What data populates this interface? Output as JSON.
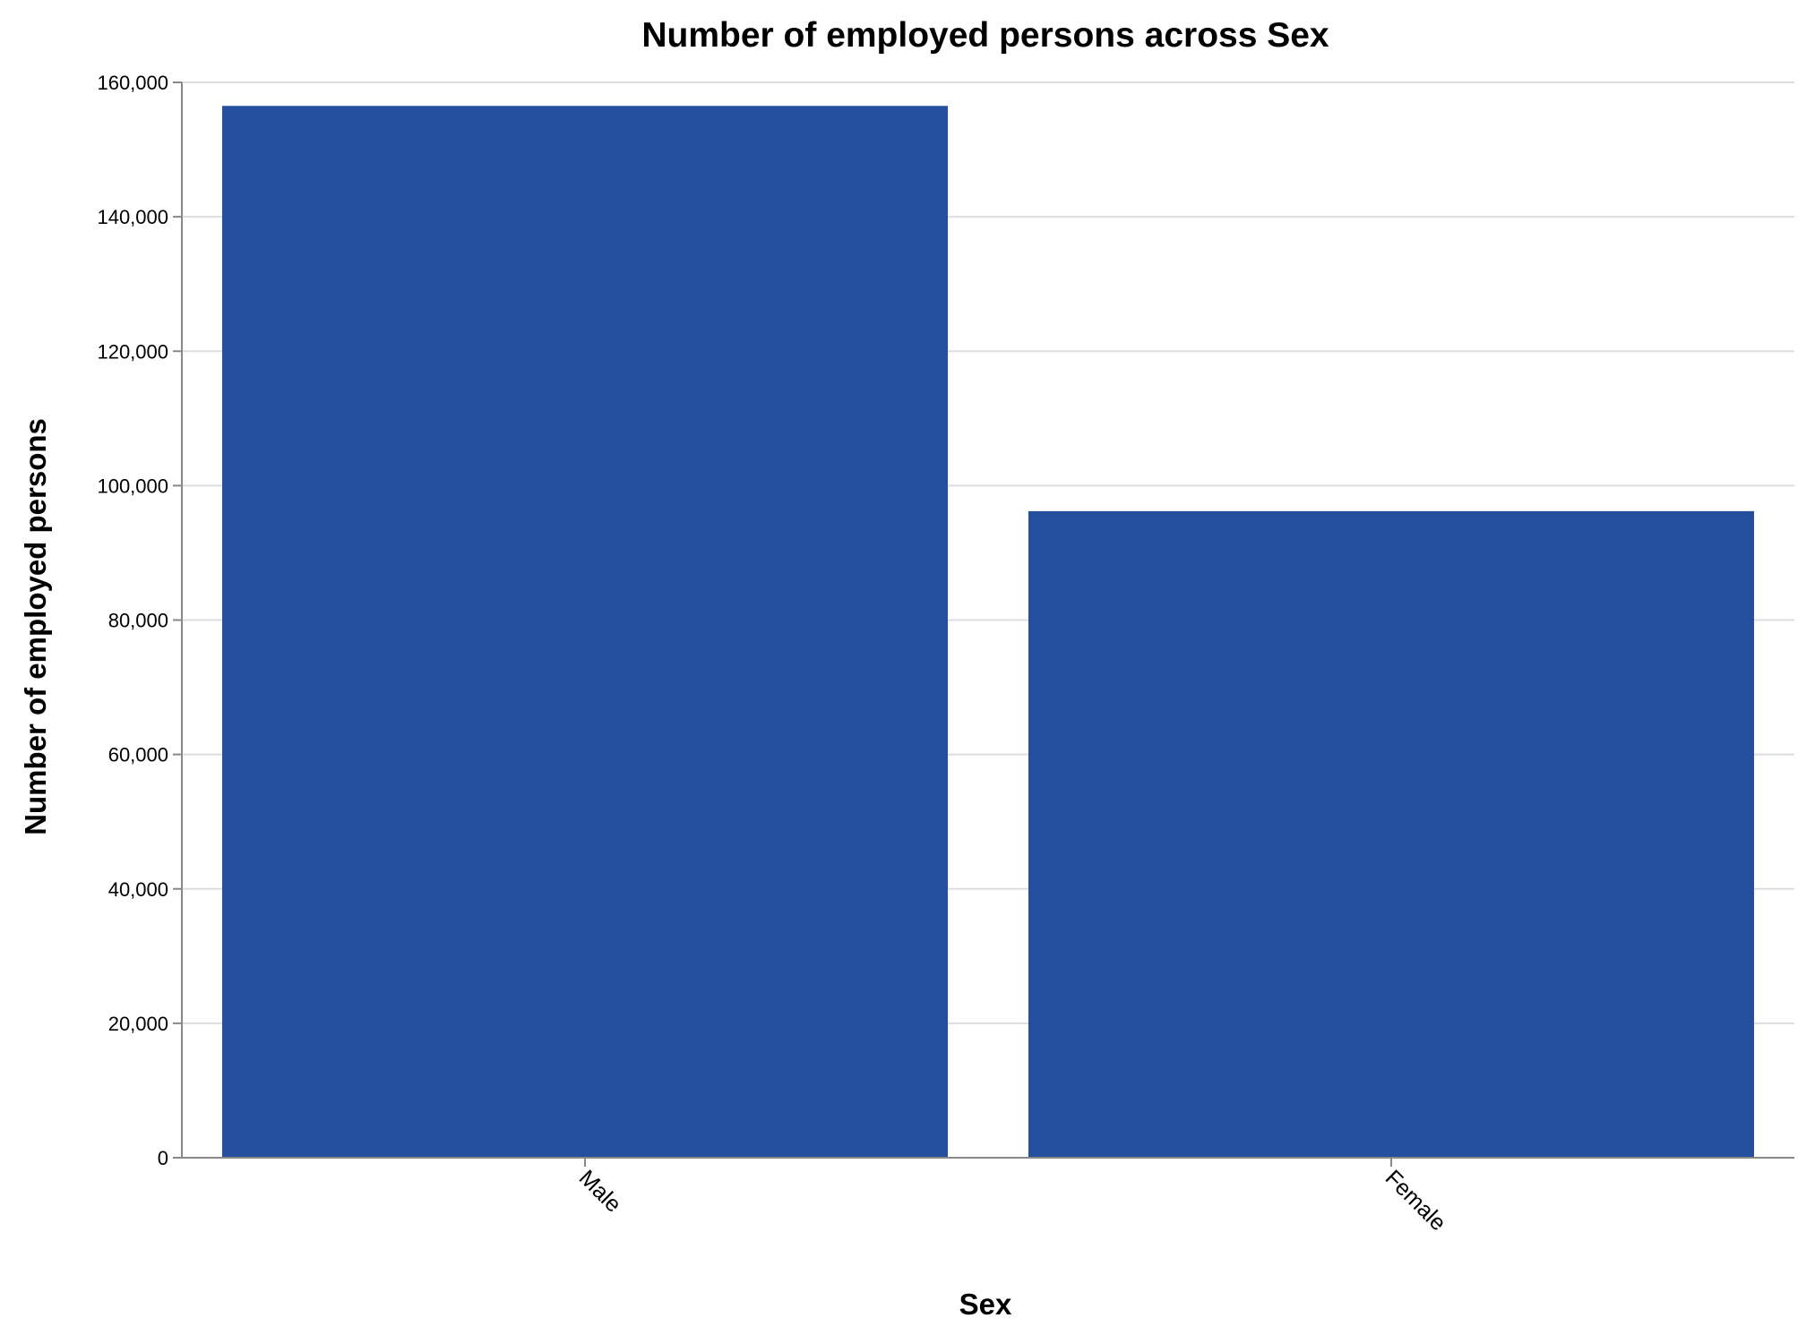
{
  "chart_data": {
    "type": "bar",
    "title": "Number of employed persons across Sex",
    "xlabel": "Sex",
    "ylabel": "Number of employed persons",
    "categories": [
      "Male",
      "Female"
    ],
    "values": [
      156500,
      96200
    ],
    "ylim": [
      0,
      160000
    ],
    "yticks": [
      0,
      20000,
      40000,
      60000,
      80000,
      100000,
      120000,
      140000,
      160000
    ],
    "ytick_labels": [
      "0",
      "20,000",
      "40,000",
      "60,000",
      "80,000",
      "100,000",
      "120,000",
      "140,000",
      "160,000"
    ],
    "grid": true,
    "bar_color": "#234f9e"
  }
}
